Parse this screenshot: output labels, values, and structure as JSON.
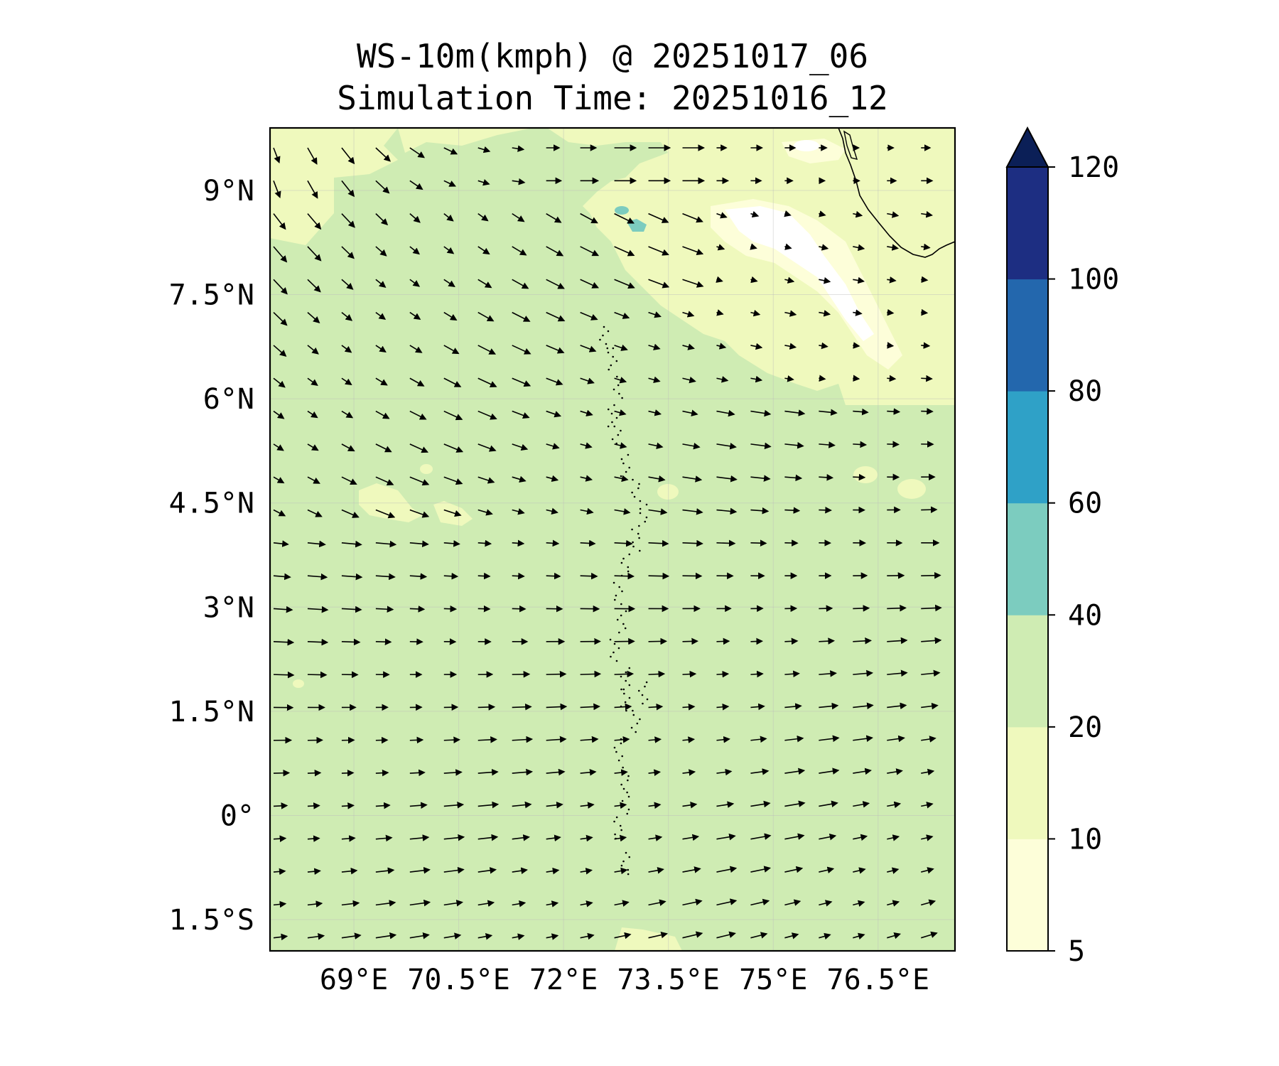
{
  "title": {
    "line1": "WS-10m(kmph) @ 20251017_06",
    "line2": "Simulation Time: 20251016_12"
  },
  "map": {
    "lon_range": [
      67.8,
      77.6
    ],
    "lat_range": [
      -1.95,
      9.9
    ],
    "lon_ticks": [
      {
        "value": 69.0,
        "label": "69°E"
      },
      {
        "value": 70.5,
        "label": "70.5°E"
      },
      {
        "value": 72.0,
        "label": "72°E"
      },
      {
        "value": 73.5,
        "label": "73.5°E"
      },
      {
        "value": 75.0,
        "label": "75°E"
      },
      {
        "value": 76.5,
        "label": "76.5°E"
      }
    ],
    "lat_ticks": [
      {
        "value": 9.0,
        "label": "9°N"
      },
      {
        "value": 7.5,
        "label": "7.5°N"
      },
      {
        "value": 6.0,
        "label": "6°N"
      },
      {
        "value": 4.5,
        "label": "4.5°N"
      },
      {
        "value": 3.0,
        "label": "3°N"
      },
      {
        "value": 1.5,
        "label": "1.5°N"
      },
      {
        "value": 0.0,
        "label": "0°"
      },
      {
        "value": -1.5,
        "label": "1.5°S"
      }
    ],
    "background_band": "20-40"
  },
  "colorbar": {
    "levels": [
      "5",
      "10",
      "20",
      "40",
      "60",
      "80",
      "100",
      "120"
    ],
    "colors": [
      "#fdfed9",
      "#eff9bd",
      "#cfecb3",
      "#7cccbf",
      "#2fa1c7",
      "#2367ad",
      "#1d2e82"
    ],
    "extend_color": "#0b1f57"
  },
  "colors": {
    "band_5_10": "#fdfed9",
    "band_10_20": "#eff9bd",
    "band_20_40": "#cfecb3",
    "band_40_60": "#7cccbf",
    "below_5": "#ffffff"
  }
}
